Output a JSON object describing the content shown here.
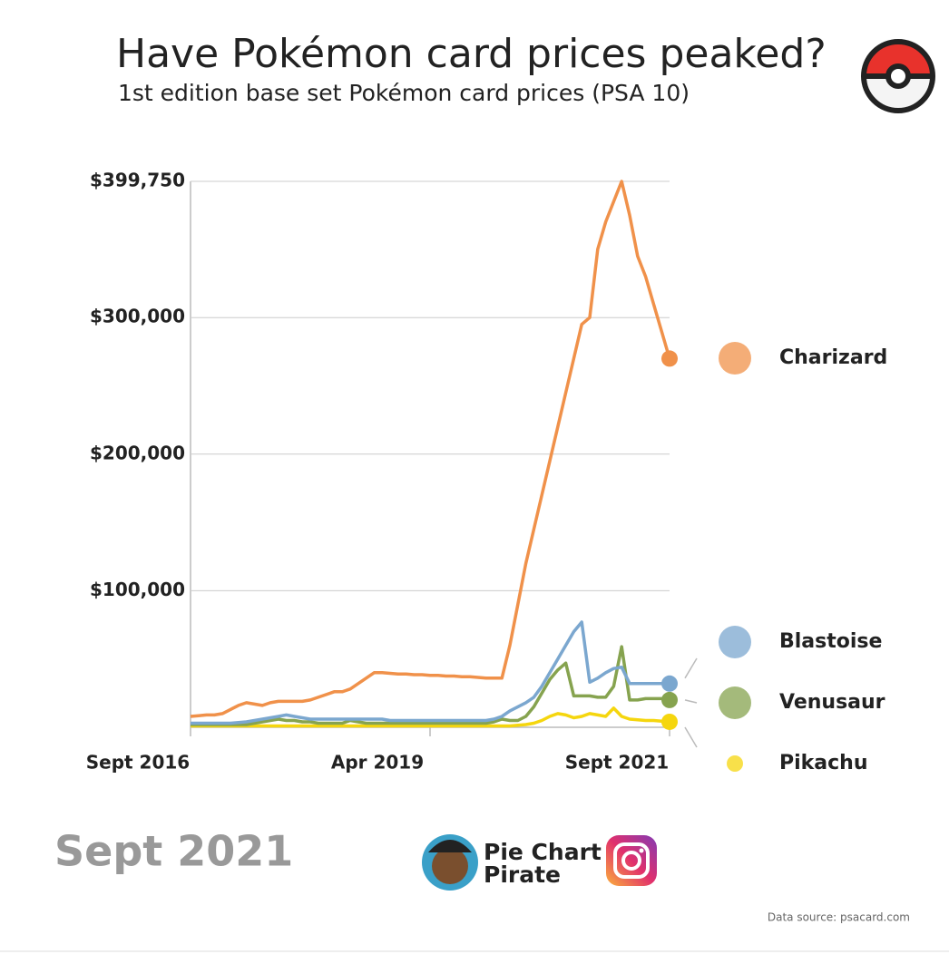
{
  "chart_data": {
    "type": "line",
    "title": "Have Pokémon card prices peaked?",
    "subtitle": "1st edition base set Pokémon  card prices (PSA 10)",
    "categories": [
      "Sept 2016",
      null,
      null,
      null,
      null,
      null,
      null,
      null,
      null,
      null,
      null,
      null,
      null,
      null,
      null,
      null,
      null,
      null,
      null,
      null,
      null,
      null,
      null,
      null,
      null,
      null,
      null,
      null,
      null,
      null,
      "Apr 2019",
      null,
      null,
      null,
      null,
      null,
      null,
      null,
      null,
      null,
      null,
      null,
      null,
      null,
      null,
      null,
      null,
      null,
      null,
      null,
      null,
      null,
      null,
      null,
      null,
      null,
      null,
      null,
      null,
      null,
      "Sept 2021"
    ],
    "series": [
      {
        "name": "Charizard",
        "color": "#f0914a",
        "values": [
          8000,
          8500,
          9000,
          9000,
          10000,
          13000,
          16000,
          18000,
          17000,
          16000,
          18000,
          19000,
          19000,
          19000,
          19000,
          20000,
          22000,
          24000,
          26000,
          26000,
          28000,
          32000,
          36000,
          40000,
          40000,
          39500,
          39000,
          39000,
          38500,
          38500,
          38000,
          38000,
          37500,
          37500,
          37000,
          37000,
          36500,
          36000,
          36000,
          36000,
          60000,
          90000,
          120000,
          145000,
          170000,
          195000,
          220000,
          245000,
          270000,
          295000,
          300000,
          350000,
          370000,
          385000,
          399750,
          375000,
          345000,
          330000,
          310000,
          290000,
          270000
        ]
      },
      {
        "name": "Blastoise",
        "color": "#7ba7cf",
        "values": [
          3000,
          3000,
          3000,
          3000,
          3000,
          3000,
          3500,
          4000,
          5000,
          6000,
          7000,
          8000,
          9000,
          8000,
          7000,
          6000,
          6000,
          6000,
          6000,
          6000,
          6000,
          6000,
          6000,
          6000,
          6000,
          5000,
          5000,
          5000,
          5000,
          5000,
          5000,
          5000,
          5000,
          5000,
          5000,
          5000,
          5000,
          5000,
          6000,
          8000,
          12000,
          15000,
          18000,
          22000,
          30000,
          40000,
          50000,
          60000,
          70000,
          77000,
          33000,
          36000,
          40000,
          43000,
          44000,
          32000,
          32000,
          32000,
          32000,
          32000,
          32000
        ]
      },
      {
        "name": "Venusaur",
        "color": "#86a34f",
        "values": [
          2000,
          2000,
          2000,
          2000,
          2000,
          2000,
          2000,
          2000,
          3000,
          4000,
          5000,
          6000,
          5000,
          5000,
          4000,
          4000,
          3000,
          3000,
          3000,
          3000,
          5000,
          4000,
          3000,
          3000,
          3000,
          3000,
          3000,
          3000,
          3000,
          3000,
          3000,
          3000,
          3000,
          3000,
          3000,
          3000,
          3000,
          3000,
          4000,
          6000,
          5000,
          5000,
          8000,
          15000,
          25000,
          35000,
          42000,
          47000,
          23000,
          23000,
          23000,
          22000,
          22000,
          30000,
          59000,
          20000,
          20000,
          21000,
          21000,
          21000,
          20000
        ]
      },
      {
        "name": "Pikachu",
        "color": "#f5d60e",
        "values": [
          1000,
          1000,
          1000,
          1000,
          1000,
          1000,
          1000,
          1000,
          1000,
          1000,
          1000,
          1000,
          1000,
          1000,
          1000,
          1000,
          1000,
          1000,
          1000,
          1000,
          1000,
          1000,
          1000,
          1000,
          1000,
          1000,
          1000,
          1000,
          1000,
          1000,
          1000,
          1000,
          1000,
          1000,
          1000,
          1000,
          1000,
          1000,
          1000,
          1000,
          1000,
          1500,
          2000,
          3000,
          5000,
          8000,
          10000,
          9000,
          7000,
          8000,
          10000,
          9000,
          8000,
          14000,
          8000,
          6000,
          5500,
          5000,
          5000,
          4500,
          4000
        ]
      }
    ],
    "ylim": [
      0,
      399750
    ],
    "yticks": [
      {
        "value": 100000,
        "label": "$100,000"
      },
      {
        "value": 200000,
        "label": "$200,000"
      },
      {
        "value": 300000,
        "label": "$300,000"
      },
      {
        "value": 399750,
        "label": "$399,750"
      }
    ],
    "grid": true
  },
  "date_label": "Sept 2021",
  "brand": [
    "Pie Chart",
    "Pirate"
  ],
  "source": "Data source: psacard.com"
}
